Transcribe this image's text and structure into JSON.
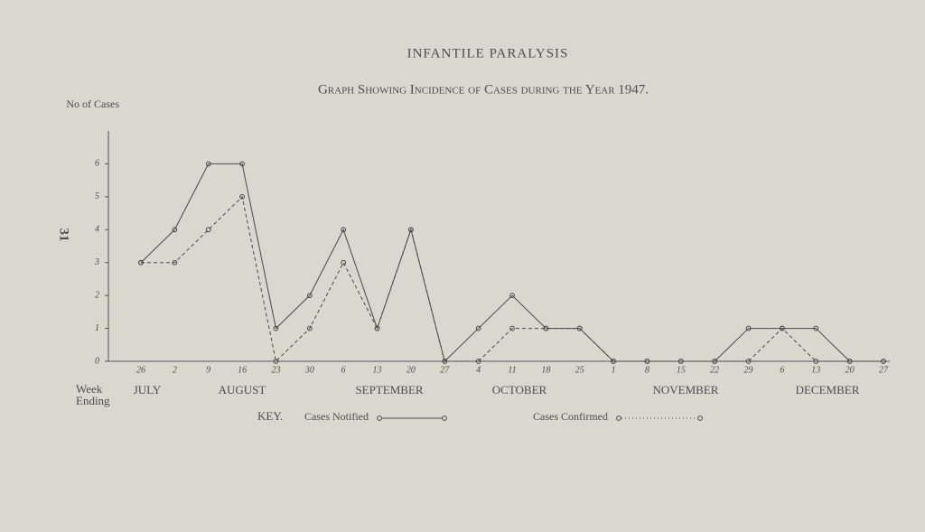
{
  "page_number": "31",
  "chart_data": {
    "type": "line",
    "title": "INFANTILE PARALYSIS",
    "subtitle": "Graph Showing Incidence of Cases during the Year 1947.",
    "y_label": "No of Cases",
    "x_label": "Week Ending",
    "categories": [
      "26",
      "2",
      "9",
      "16",
      "23",
      "30",
      "6",
      "13",
      "20",
      "27",
      "4",
      "11",
      "18",
      "25",
      "1",
      "8",
      "15",
      "22",
      "29",
      "6",
      "13",
      "20",
      "27"
    ],
    "months": [
      "JULY",
      "AUGUST",
      "SEPTEMBER",
      "OCTOBER",
      "NOVEMBER",
      "DECEMBER"
    ],
    "ylim": [
      0,
      7
    ],
    "yticks": [
      0,
      1,
      2,
      3,
      4,
      5,
      6
    ],
    "legend_title": "KEY.",
    "series": [
      {
        "name": "Cases Notified",
        "color": "#4a4a46",
        "line_style": "solid",
        "values": [
          3,
          4,
          6,
          6,
          1,
          2,
          4,
          1,
          4,
          0,
          1,
          2,
          1,
          1,
          0,
          0,
          0,
          0,
          1,
          1,
          1,
          0,
          0
        ]
      },
      {
        "name": "Cases Confirmed",
        "color": "#4a4a46",
        "line_style": "dashed",
        "values": [
          3,
          3,
          4,
          5,
          0,
          1,
          3,
          1,
          4,
          0,
          0,
          1,
          1,
          1,
          0,
          0,
          0,
          0,
          0,
          1,
          0,
          0,
          0
        ]
      }
    ]
  }
}
